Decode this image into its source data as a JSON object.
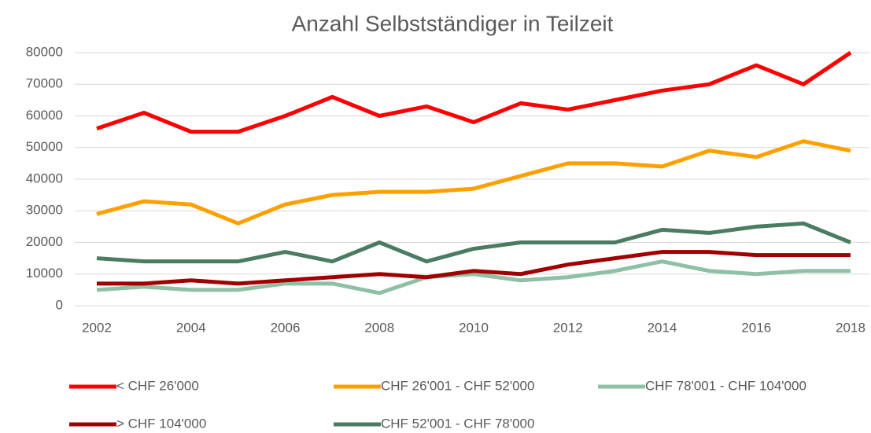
{
  "chart_data": {
    "type": "line",
    "title": "Anzahl Selbstständiger in Teilzeit",
    "x": [
      2002,
      2003,
      2004,
      2005,
      2006,
      2007,
      2008,
      2009,
      2010,
      2011,
      2012,
      2013,
      2014,
      2015,
      2016,
      2017,
      2018
    ],
    "xlim": [
      2002,
      2018
    ],
    "xticks": [
      2002,
      2004,
      2006,
      2008,
      2010,
      2012,
      2014,
      2016,
      2018
    ],
    "ylim": [
      0,
      80000
    ],
    "yticks": [
      0,
      10000,
      20000,
      30000,
      40000,
      50000,
      60000,
      70000,
      80000
    ],
    "grid": true,
    "legend": "bottom",
    "series": [
      {
        "name": "< CHF 26'000",
        "color": "#ff0000",
        "values": [
          56000,
          61000,
          55000,
          55000,
          60000,
          66000,
          60000,
          63000,
          58000,
          64000,
          62000,
          65000,
          68000,
          70000,
          76000,
          70000,
          80000
        ]
      },
      {
        "name": "CHF 26'001 - CHF 52'000",
        "color": "#ffa000",
        "values": [
          29000,
          33000,
          32000,
          26000,
          32000,
          35000,
          36000,
          36000,
          37000,
          41000,
          45000,
          45000,
          44000,
          49000,
          47000,
          52000,
          49000
        ]
      },
      {
        "name": "CHF 78'001 - CHF 104'000",
        "color": "#8fc0a5",
        "values": [
          5000,
          6000,
          5000,
          5000,
          7000,
          7000,
          4000,
          9000,
          10000,
          8000,
          9000,
          11000,
          14000,
          11000,
          10000,
          11000,
          11000
        ]
      },
      {
        "name": "> CHF 104'000",
        "color": "#a00000",
        "values": [
          7000,
          7000,
          8000,
          7000,
          8000,
          9000,
          10000,
          9000,
          11000,
          10000,
          13000,
          15000,
          17000,
          17000,
          16000,
          16000,
          16000
        ]
      },
      {
        "name": "CHF 52'001 - CHF 78'000",
        "color": "#4b7b60",
        "values": [
          15000,
          14000,
          14000,
          14000,
          17000,
          14000,
          20000,
          14000,
          18000,
          20000,
          20000,
          20000,
          24000,
          23000,
          25000,
          26000,
          20000
        ]
      }
    ]
  }
}
